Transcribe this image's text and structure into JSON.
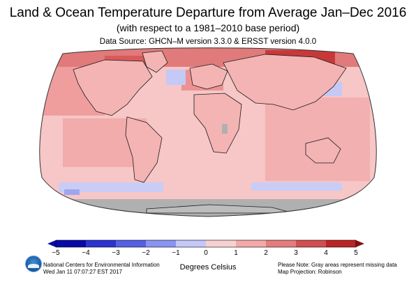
{
  "title": "Land & Ocean Temperature Departure from Average Jan–Dec 2016",
  "subtitle": "(with respect to a 1981–2010 base period)",
  "data_source": "Data Source: GHCN–M version 3.3.0 & ERSST version 4.0.0",
  "legend": {
    "ticks": [
      "−5",
      "−4",
      "−3",
      "−2",
      "−1",
      "0",
      "1",
      "2",
      "3",
      "4",
      "5"
    ],
    "units_label": "Degrees Celsius",
    "colors": [
      "#0a0aa8",
      "#2c33d0",
      "#5560e4",
      "#8a93f0",
      "#c3c8f8",
      "#f8d0d0",
      "#f4a8a8",
      "#e57c7c",
      "#d24f4f",
      "#bb2424"
    ]
  },
  "footer": {
    "org_line1": "National Centers for Environmental Information",
    "org_line2": "Wed Jan 11 07:07:27 EST 2017",
    "note_line1": "Please Note: Gray areas represent missing data",
    "note_line2": "Map Projection: Robinson"
  },
  "map": {
    "projection": "Robinson",
    "missing_data_color": "#b0b0b0",
    "ocean_base_color": "#f8c4c4"
  },
  "logo": "noaa-logo"
}
